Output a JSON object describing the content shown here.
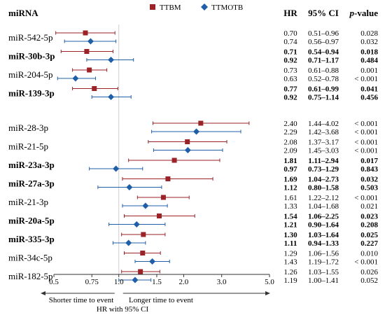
{
  "chart_data": {
    "type": "forest",
    "title": "",
    "columns": {
      "label": "miRNA",
      "hr": "HR",
      "ci": "95% CI",
      "p": "p-value"
    },
    "legend": [
      {
        "name": "TTBM",
        "color": "#9b2226",
        "marker": "square"
      },
      {
        "name": "TTMOTB",
        "color": "#1f5fa8",
        "marker": "diamond"
      }
    ],
    "x_axis": {
      "scale": "log",
      "ticks": [
        "0.5",
        "0.75",
        "1.0",
        "1.5",
        "2.0",
        "3.0",
        "5.0"
      ],
      "tick_values": [
        0.5,
        0.75,
        1.0,
        1.5,
        2.0,
        3.0,
        5.0
      ],
      "range": [
        0.5,
        5.0
      ],
      "reference": 1.0,
      "left_arrow_label": "Shorter time to event",
      "right_arrow_label": "Longer time to event",
      "xlabel": "HR with 95% CI"
    },
    "rows": [
      {
        "label": "miR-542-5p",
        "bold": false,
        "group": 0,
        "ttbm": {
          "hr": 0.7,
          "lo": 0.51,
          "hi": 0.96,
          "hr_text": "0.70",
          "ci_text": "0.51–0.96",
          "p_text": "0.028"
        },
        "ttmotb": {
          "hr": 0.74,
          "lo": 0.56,
          "hi": 0.97,
          "hr_text": "0.74",
          "ci_text": "0.56–0.97",
          "p_text": "0.032"
        }
      },
      {
        "label": "miR-30b-3p",
        "bold": true,
        "group": 0,
        "ttbm": {
          "hr": 0.71,
          "lo": 0.54,
          "hi": 0.94,
          "hr_text": "0.71",
          "ci_text": "0.54–0.94",
          "p_text": "0.018"
        },
        "ttmotb": {
          "hr": 0.92,
          "lo": 0.71,
          "hi": 1.17,
          "hr_text": "0.92",
          "ci_text": "0.71–1.17",
          "p_text": "0.484"
        }
      },
      {
        "label": "miR-204-5p",
        "bold": false,
        "group": 0,
        "ttbm": {
          "hr": 0.73,
          "lo": 0.61,
          "hi": 0.88,
          "hr_text": "0.73",
          "ci_text": "0.61–0.88",
          "p_text": "0.001"
        },
        "ttmotb": {
          "hr": 0.63,
          "lo": 0.52,
          "hi": 0.78,
          "hr_text": "0.63",
          "ci_text": "0.52–0.78",
          "p_text": "< 0.001"
        }
      },
      {
        "label": "miR-139-3p",
        "bold": true,
        "group": 0,
        "ttbm": {
          "hr": 0.77,
          "lo": 0.61,
          "hi": 0.99,
          "hr_text": "0.77",
          "ci_text": "0.61–0.99",
          "p_text": "0.041"
        },
        "ttmotb": {
          "hr": 0.92,
          "lo": 0.75,
          "hi": 1.14,
          "hr_text": "0.92",
          "ci_text": "0.75–1.14",
          "p_text": "0.456"
        }
      },
      {
        "label": "miR-28-3p",
        "bold": false,
        "group": 1,
        "ttbm": {
          "hr": 2.4,
          "lo": 1.44,
          "hi": 4.02,
          "hr_text": "2.40",
          "ci_text": "1.44–4.02",
          "p_text": "< 0.001"
        },
        "ttmotb": {
          "hr": 2.29,
          "lo": 1.42,
          "hi": 3.68,
          "hr_text": "2.29",
          "ci_text": "1.42–3.68",
          "p_text": "< 0.001"
        }
      },
      {
        "label": "miR-21-5p",
        "bold": false,
        "group": 1,
        "ttbm": {
          "hr": 2.08,
          "lo": 1.37,
          "hi": 3.17,
          "hr_text": "2.08",
          "ci_text": "1.37–3.17",
          "p_text": "< 0.001"
        },
        "ttmotb": {
          "hr": 2.09,
          "lo": 1.45,
          "hi": 3.03,
          "hr_text": "2.09",
          "ci_text": "1.45–3.03",
          "p_text": "< 0.001"
        }
      },
      {
        "label": "miR-23a-3p",
        "bold": true,
        "group": 1,
        "ttbm": {
          "hr": 1.81,
          "lo": 1.11,
          "hi": 2.94,
          "hr_text": "1.81",
          "ci_text": "1.11–2.94",
          "p_text": "0.017"
        },
        "ttmotb": {
          "hr": 0.97,
          "lo": 0.73,
          "hi": 1.29,
          "hr_text": "0.97",
          "ci_text": "0.73–1.29",
          "p_text": "0.843"
        }
      },
      {
        "label": "miR-27a-3p",
        "bold": true,
        "group": 1,
        "ttbm": {
          "hr": 1.69,
          "lo": 1.04,
          "hi": 2.73,
          "hr_text": "1.69",
          "ci_text": "1.04–2.73",
          "p_text": "0.032"
        },
        "ttmotb": {
          "hr": 1.12,
          "lo": 0.8,
          "hi": 1.58,
          "hr_text": "1.12",
          "ci_text": "0.80–1.58",
          "p_text": "0.503"
        }
      },
      {
        "label": "miR-21-3p",
        "bold": false,
        "group": 1,
        "ttbm": {
          "hr": 1.61,
          "lo": 1.22,
          "hi": 2.12,
          "hr_text": "1.61",
          "ci_text": "1.22–2.12",
          "p_text": "< 0.001"
        },
        "ttmotb": {
          "hr": 1.33,
          "lo": 1.04,
          "hi": 1.68,
          "hr_text": "1.33",
          "ci_text": "1.04–1.68",
          "p_text": "0.021"
        }
      },
      {
        "label": "miR-20a-5p",
        "bold": true,
        "group": 1,
        "ttbm": {
          "hr": 1.54,
          "lo": 1.06,
          "hi": 2.25,
          "hr_text": "1.54",
          "ci_text": "1.06–2.25",
          "p_text": "0.023"
        },
        "ttmotb": {
          "hr": 1.21,
          "lo": 0.9,
          "hi": 1.64,
          "hr_text": "1.21",
          "ci_text": "0.90–1.64",
          "p_text": "0.208"
        }
      },
      {
        "label": "miR-335-3p",
        "bold": true,
        "group": 1,
        "ttbm": {
          "hr": 1.3,
          "lo": 1.03,
          "hi": 1.64,
          "hr_text": "1.30",
          "ci_text": "1.03–1.64",
          "p_text": "0.025"
        },
        "ttmotb": {
          "hr": 1.11,
          "lo": 0.94,
          "hi": 1.33,
          "hr_text": "1.11",
          "ci_text": "0.94–1.33",
          "p_text": "0.227"
        }
      },
      {
        "label": "miR-34c-5p",
        "bold": false,
        "group": 1,
        "ttbm": {
          "hr": 1.29,
          "lo": 1.06,
          "hi": 1.56,
          "hr_text": "1.29",
          "ci_text": "1.06–1.56",
          "p_text": "0.010"
        },
        "ttmotb": {
          "hr": 1.43,
          "lo": 1.19,
          "hi": 1.72,
          "hr_text": "1.43",
          "ci_text": "1.19–1.72",
          "p_text": "< 0.001"
        }
      },
      {
        "label": "miR-182-5p",
        "bold": false,
        "group": 1,
        "ttbm": {
          "hr": 1.26,
          "lo": 1.03,
          "hi": 1.55,
          "hr_text": "1.26",
          "ci_text": "1.03–1.55",
          "p_text": "0.026"
        },
        "ttmotb": {
          "hr": 1.19,
          "lo": 1.0,
          "hi": 1.41,
          "hr_text": "1.19",
          "ci_text": "1.00–1.41",
          "p_text": "0.052"
        }
      }
    ]
  }
}
